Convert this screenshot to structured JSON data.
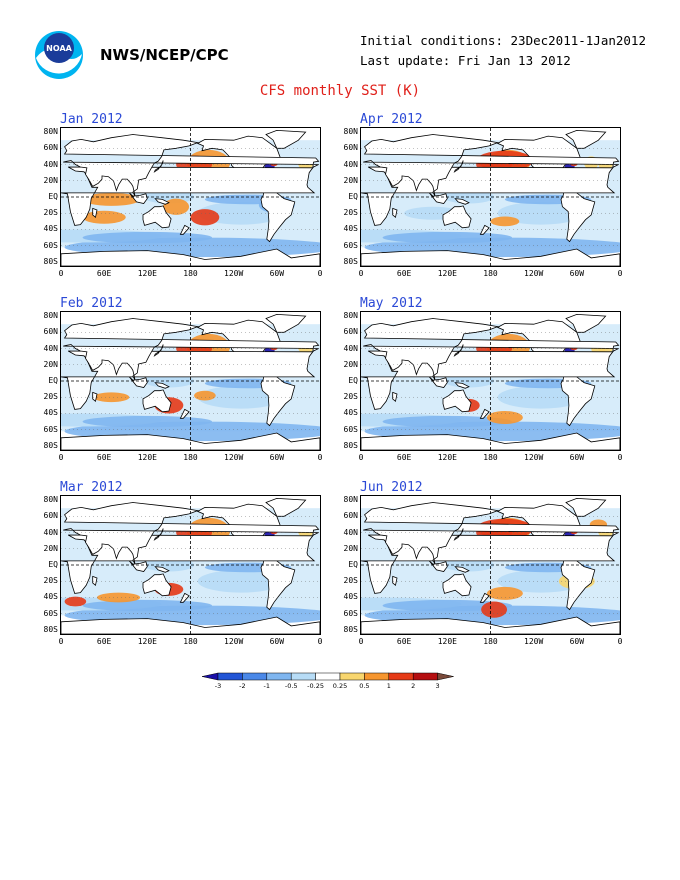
{
  "header": {
    "agency": "NWS/NCEP/CPC",
    "initial_conditions": "Initial conditions: 23Dec2011-1Jan2012",
    "last_update": "Last update: Fri Jan 13 2012",
    "title": "CFS monthly SST (K)",
    "logo_name": "noaa-logo"
  },
  "panels": [
    {
      "title": "Jan 2012"
    },
    {
      "title": "Apr 2012"
    },
    {
      "title": "Feb 2012"
    },
    {
      "title": "May 2012"
    },
    {
      "title": "Mar 2012"
    },
    {
      "title": "Jun 2012"
    }
  ],
  "lat_labels": [
    "80N",
    "60N",
    "40N",
    "20N",
    "EQ",
    "20S",
    "40S",
    "60S",
    "80S"
  ],
  "lon_labels": [
    "0",
    "60E",
    "120E",
    "180",
    "120W",
    "60W",
    "0"
  ],
  "colorbar": {
    "ticks": [
      "-3",
      "-2",
      "-1",
      "-0.5",
      "-0.25",
      "0.25",
      "0.5",
      "1",
      "2",
      "3"
    ],
    "colors": [
      "#1a0fa8",
      "#2255d6",
      "#4a88e8",
      "#7fb6f0",
      "#b7dcf6",
      "#ffffff",
      "#f8d66e",
      "#f6962f",
      "#e53a17",
      "#b50e10",
      "#7a4a3a"
    ]
  }
}
